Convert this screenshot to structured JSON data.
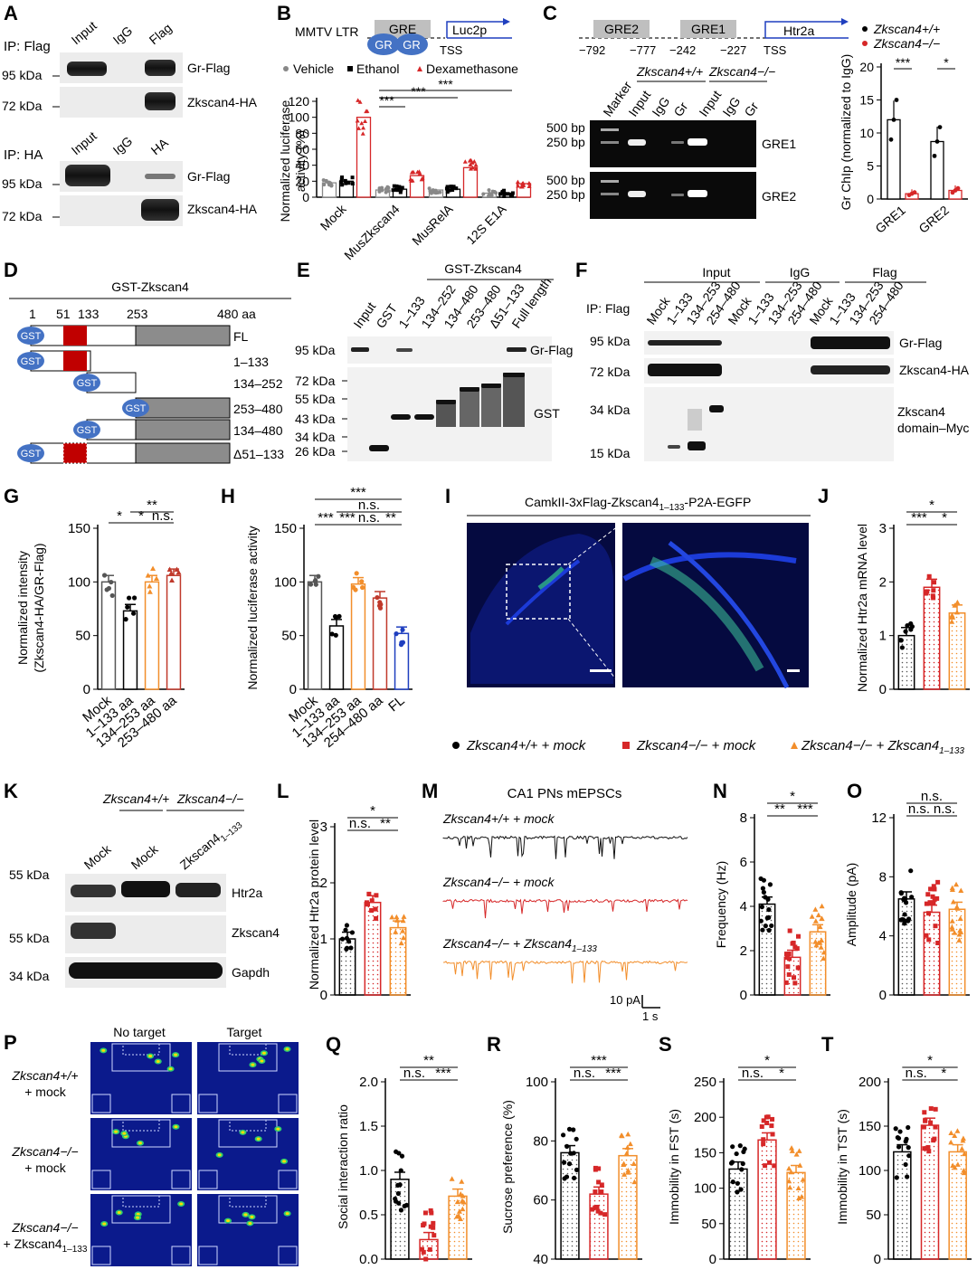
{
  "panels": {
    "A": {
      "label": "A",
      "ip_flag": "IP: Flag",
      "ip_ha": "IP: HA",
      "lanes_top": [
        "Input",
        "IgG",
        "Flag"
      ],
      "lanes_bottom": [
        "Input",
        "IgG",
        "HA"
      ],
      "mw": [
        "95 kDa",
        "72 kDa",
        "95 kDa",
        "72 kDa"
      ],
      "bands": [
        "Gr-Flag",
        "Zkscan4-HA",
        "Gr-Flag",
        "Zkscan4-HA"
      ]
    },
    "B": {
      "label": "B",
      "promoter": "MMTV LTR",
      "gre": "GRE",
      "gr": "GR",
      "reporter": "Luc2p",
      "tss": "TSS",
      "legend": [
        "Vehicle",
        "Ethanol",
        "Dexamethasone"
      ],
      "sig": [
        "***",
        "***",
        "***"
      ]
    },
    "C": {
      "label": "C",
      "elements": [
        "GRE2",
        "GRE1",
        "Htr2a"
      ],
      "coords": [
        "−792",
        "−777",
        "−242",
        "−227"
      ],
      "tss": "TSS",
      "genotypes": [
        "Zkscan4+/+",
        "Zkscan4−/−"
      ],
      "lanes": [
        "Marker",
        "Input",
        "IgG",
        "Gr",
        "Input",
        "IgG",
        "Gr"
      ],
      "bp": [
        "500 bp",
        "250 bp",
        "500 bp",
        "250 bp"
      ],
      "bands": [
        "GRE1",
        "GRE2"
      ],
      "legend": [
        "Zkscan4+/+",
        "Zkscan4−/−"
      ],
      "sig": [
        "***",
        "*"
      ]
    },
    "D": {
      "label": "D",
      "title": "GST-Zkscan4",
      "ticks": [
        "1",
        "51",
        "133",
        "253",
        "480 aa"
      ],
      "tag": "GST",
      "constructs": [
        "FL",
        "1–133",
        "134–252",
        "253–480",
        "134–480",
        "Δ51–133"
      ]
    },
    "E": {
      "label": "E",
      "group": "GST-Zkscan4",
      "lanes": [
        "Input",
        "GST",
        "1–133",
        "134–252",
        "134–480",
        "253–480",
        "Δ51–133",
        "Full length"
      ],
      "mw_top": [
        "95 kDa"
      ],
      "mw_bottom": [
        "72 kDa",
        "55 kDa",
        "43 kDa",
        "34 kDa",
        "26 kDa"
      ],
      "bands": [
        "Gr-Flag",
        "GST"
      ]
    },
    "F": {
      "label": "F",
      "ip": "IP: Flag",
      "groups": [
        "Input",
        "IgG",
        "Flag"
      ],
      "lanes": [
        "Mock",
        "1–133",
        "134–253",
        "254–480"
      ],
      "mw": [
        "95 kDa",
        "72 kDa",
        "34 kDa",
        "15 kDa"
      ],
      "bands": [
        "Gr-Flag",
        "Zkscan4-HA",
        "Zkscan4",
        "domain–Myc"
      ]
    },
    "I": {
      "label": "I",
      "title": "CamkII-3xFlag-Zkscan4",
      "title_sub": "1–133",
      "title_tail": "-P2A-EGFP"
    },
    "K": {
      "label": "K",
      "genotypes": [
        "Zkscan4+/+",
        "Zkscan4−/−"
      ],
      "lanes": [
        "Mock",
        "Mock",
        "Zkscan4"
      ],
      "lane_sub": "1–133",
      "mw": [
        "55 kDa",
        "55 kDa",
        "34 kDa"
      ],
      "bands": [
        "Htr2a",
        "Zkscan4",
        "Gapdh"
      ]
    },
    "M": {
      "label": "M",
      "title": "CA1 PNs mEPSCs",
      "traces": [
        "Zkscan4+/+ + mock",
        "Zkscan4−/− + mock",
        "Zkscan4−/− + Zkscan4"
      ],
      "trace_sub": "1–133",
      "scale_y": "10 pA",
      "scale_x": "1 s"
    },
    "P": {
      "label": "P",
      "cols": [
        "No target",
        "Target"
      ],
      "rows": [
        "Zkscan4+/+",
        "+ mock",
        "Zkscan4−/−",
        "+ mock",
        "Zkscan4−/−",
        "+ Zkscan4"
      ],
      "row_sub": "1–133"
    },
    "legend_row": {
      "items": [
        "Zkscan4+/+ + mock",
        "Zkscan4−/− + mock",
        "Zkscan4−/− + Zkscan4"
      ],
      "sub": "1–133"
    }
  },
  "colors": {
    "wt": "#000000",
    "ko": "#d62728",
    "rescue": "#f28e2b",
    "fl": "#1f3fbf",
    "gst": "#4472c4",
    "domain": "#c00000",
    "gray_domain": "#8c8c8c",
    "gre_box": "#bfbfbf"
  },
  "chart_data": [
    {
      "panel": "B",
      "type": "bar",
      "ylabel": "Normalized luciferase activity (%)",
      "categories": [
        "Mock",
        "MusZkscan4",
        "MusRelA",
        "12S E1A"
      ],
      "series": [
        {
          "name": "Vehicle",
          "values": [
            18,
            9,
            9,
            5
          ]
        },
        {
          "name": "Ethanol",
          "values": [
            20,
            10,
            10,
            5
          ]
        },
        {
          "name": "Dexamethasone",
          "values": [
            100,
            27,
            37,
            17
          ]
        }
      ],
      "ylim": [
        0,
        120
      ],
      "yticks": [
        0,
        20,
        40,
        60,
        80,
        100,
        120
      ]
    },
    {
      "panel": "C",
      "type": "bar",
      "ylabel": "Gr ChIp (normalized to IgG)",
      "categories": [
        "GRE1",
        "GRE2"
      ],
      "series": [
        {
          "name": "Zkscan4+/+",
          "values": [
            12,
            8.7
          ]
        },
        {
          "name": "Zkscan4−/−",
          "values": [
            0.8,
            1.3
          ]
        }
      ],
      "ylim": [
        0,
        20
      ],
      "yticks": [
        0,
        5,
        10,
        15,
        20
      ]
    },
    {
      "panel": "G",
      "type": "bar",
      "ylabel": "Normalized intensity (Zkscan4-HA/GR-Flag)",
      "categories": [
        "Mock",
        "1–133 aa",
        "134–253 aa",
        "253–480 aa"
      ],
      "values": [
        100,
        73,
        100,
        106
      ],
      "ylim": [
        0,
        150
      ],
      "yticks": [
        0,
        50,
        100,
        150
      ],
      "sig": [
        "*",
        "*",
        "n.s.",
        "**"
      ]
    },
    {
      "panel": "H",
      "type": "bar",
      "ylabel": "Normalized luciferase activity",
      "categories": [
        "Mock",
        "1–133 aa",
        "134–253 aa",
        "254–480 aa",
        "FL"
      ],
      "values": [
        100,
        59,
        98,
        85,
        52
      ],
      "ylim": [
        0,
        150
      ],
      "yticks": [
        0,
        50,
        100,
        150
      ],
      "sig": [
        "***",
        "***",
        "n.s.",
        "**",
        "***",
        "n.s."
      ]
    },
    {
      "panel": "J",
      "type": "bar",
      "ylabel": "Normalized Htr2a mRNA level",
      "categories": [
        "Zkscan4+/+ + mock",
        "Zkscan4−/− + mock",
        "Zkscan4−/− + Zkscan4 1–133"
      ],
      "values": [
        1.0,
        1.9,
        1.42
      ],
      "ylim": [
        0,
        3
      ],
      "yticks": [
        0,
        1,
        2,
        3
      ],
      "sig": [
        "***",
        "*",
        "*"
      ]
    },
    {
      "panel": "L",
      "type": "bar",
      "ylabel": "Normalized Htr2a protein level",
      "categories": [
        "Zkscan4+/+ + mock",
        "Zkscan4−/− + mock",
        "Zkscan4−/− + Zkscan4 1–133"
      ],
      "values": [
        1.0,
        1.65,
        1.2
      ],
      "ylim": [
        0,
        3
      ],
      "yticks": [
        0,
        1,
        2,
        3
      ],
      "sig": [
        "n.s.",
        "**",
        "*"
      ]
    },
    {
      "panel": "N",
      "type": "bar",
      "ylabel": "Frequency (Hz)",
      "categories": [
        "Zkscan4+/+ + mock",
        "Zkscan4−/− + mock",
        "Zkscan4−/− + Zkscan4 1–133"
      ],
      "values": [
        4.1,
        1.7,
        2.85
      ],
      "ylim": [
        0,
        8
      ],
      "yticks": [
        0,
        2,
        4,
        6,
        8
      ],
      "sig": [
        "**",
        "***",
        "*"
      ]
    },
    {
      "panel": "O",
      "type": "bar",
      "ylabel": "Amplitude (pA)",
      "categories": [
        "Zkscan4+/+ + mock",
        "Zkscan4−/− + mock",
        "Zkscan4−/− + Zkscan4 1–133"
      ],
      "values": [
        6.5,
        5.6,
        5.8
      ],
      "ylim": [
        0,
        12
      ],
      "yticks": [
        0,
        4,
        8,
        12
      ],
      "sig": [
        "n.s.",
        "n.s.",
        "n.s."
      ]
    },
    {
      "panel": "Q",
      "type": "bar",
      "ylabel": "Social interaction ratio",
      "categories": [
        "Zkscan4+/+ + mock",
        "Zkscan4−/− + mock",
        "Zkscan4−/− + Zkscan4 1–133"
      ],
      "values": [
        0.9,
        0.22,
        0.71
      ],
      "ylim": [
        0,
        2
      ],
      "yticks": [
        0.0,
        0.5,
        1.0,
        1.5,
        2.0
      ],
      "sig": [
        "n.s.",
        "***",
        "**"
      ]
    },
    {
      "panel": "R",
      "type": "bar",
      "ylabel": "Sucrose preference (%)",
      "categories": [
        "Zkscan4+/+ + mock",
        "Zkscan4−/− + mock",
        "Zkscan4−/− + Zkscan4 1–133"
      ],
      "values": [
        76,
        62,
        75
      ],
      "ylim": [
        40,
        100
      ],
      "yticks": [
        40,
        60,
        80,
        100
      ],
      "sig": [
        "n.s.",
        "***",
        "***"
      ]
    },
    {
      "panel": "S",
      "type": "bar",
      "ylabel": "Immobility in FST (s)",
      "categories": [
        "Zkscan4+/+ + mock",
        "Zkscan4−/− + mock",
        "Zkscan4−/− + Zkscan4 1–133"
      ],
      "values": [
        127,
        168,
        122
      ],
      "ylim": [
        0,
        250
      ],
      "yticks": [
        0,
        50,
        100,
        150,
        200,
        250
      ],
      "sig": [
        "n.s.",
        "*",
        "*"
      ]
    },
    {
      "panel": "T",
      "type": "bar",
      "ylabel": "Immobility in TST (s)",
      "categories": [
        "Zkscan4+/+ + mock",
        "Zkscan4−/− + mock",
        "Zkscan4−/− + Zkscan4 1–133"
      ],
      "values": [
        121,
        151,
        121
      ],
      "ylim": [
        0,
        200
      ],
      "yticks": [
        0,
        50,
        100,
        150,
        200
      ],
      "sig": [
        "n.s.",
        "*",
        "*"
      ]
    }
  ]
}
